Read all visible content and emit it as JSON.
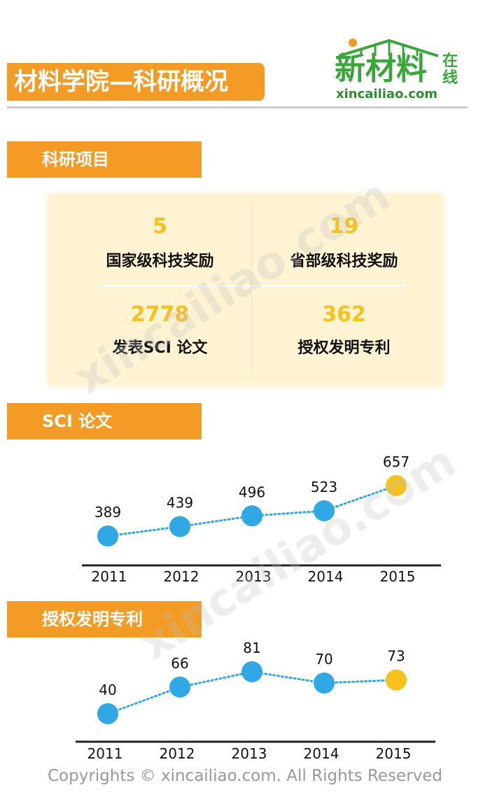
{
  "header": {
    "title": "材料学院—科研概况",
    "logo_name": "新材料",
    "logo_zaixian": "在线",
    "logo_url": "xincailiao.com"
  },
  "colors": {
    "orange": "#f49b25",
    "yellow": "#f6c21b",
    "blue": "#2fa8e5",
    "green": "#3aa63a"
  },
  "sections": {
    "projects": "科研项目",
    "sci": "SCI 论文",
    "patents": "授权发明专利"
  },
  "stats": [
    {
      "value": "5",
      "label": "国家级科技奖励"
    },
    {
      "value": "19",
      "label": "省部级科技奖励"
    },
    {
      "value": "2778",
      "label": "发表SCI 论文"
    },
    {
      "value": "362",
      "label": "授权发明专利"
    }
  ],
  "chart_data": [
    {
      "type": "line",
      "title": "SCI 论文",
      "x": [
        "2011",
        "2012",
        "2013",
        "2014",
        "2015"
      ],
      "series": [
        {
          "values": [
            389,
            439,
            496,
            523,
            657
          ]
        }
      ],
      "highlight_last": true,
      "grid": false
    },
    {
      "type": "line",
      "title": "授权发明专利",
      "x": [
        "2011",
        "2012",
        "2013",
        "2014",
        "2015"
      ],
      "series": [
        {
          "values": [
            40,
            66,
            81,
            70,
            73
          ]
        }
      ],
      "highlight_last": true,
      "grid": false
    }
  ],
  "watermark": "xincailiao.com",
  "footer": "Copyrights © xincailiao.com. All Rights Reserved"
}
